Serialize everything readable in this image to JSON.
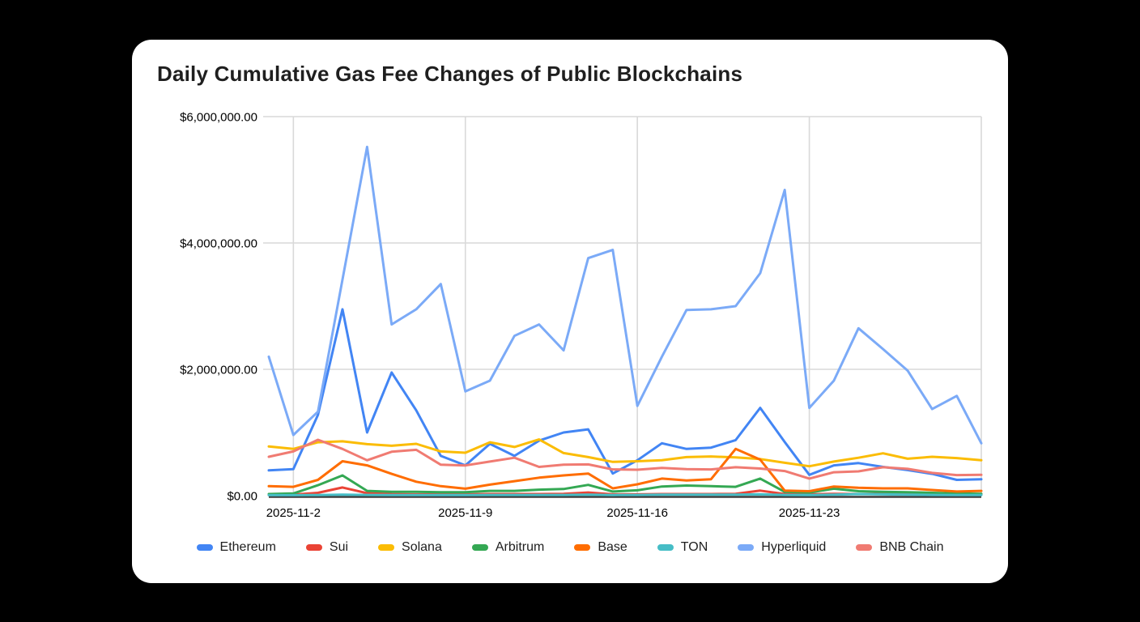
{
  "card": {
    "title": "Daily Cumulative Gas Fee Changes of Public Blockchains"
  },
  "colors": {
    "page_bg": "#000000",
    "card_bg": "#ffffff",
    "gridline": "#d9d9d9",
    "axis_line": "#3b3b3b",
    "tick_label": "#000000",
    "title": "#1f1f1f"
  },
  "chart_data": {
    "type": "line",
    "title": "Daily Cumulative Gas Fee Changes of Public Blockchains",
    "xlabel": "",
    "ylabel": "",
    "ylim": [
      0,
      6000000
    ],
    "grid": true,
    "legend_position": "bottom",
    "x": [
      "2025-11-1",
      "2025-11-2",
      "2025-11-3",
      "2025-11-4",
      "2025-11-5",
      "2025-11-6",
      "2025-11-7",
      "2025-11-8",
      "2025-11-9",
      "2025-11-10",
      "2025-11-11",
      "2025-11-12",
      "2025-11-13",
      "2025-11-14",
      "2025-11-15",
      "2025-11-16",
      "2025-11-17",
      "2025-11-18",
      "2025-11-19",
      "2025-11-20",
      "2025-11-21",
      "2025-11-22",
      "2025-11-23",
      "2025-11-24",
      "2025-11-25",
      "2025-11-26",
      "2025-11-27",
      "2025-11-28",
      "2025-11-29",
      "2025-11-30"
    ],
    "x_tick_labels": [
      {
        "index": 1,
        "label": "2025-11-2"
      },
      {
        "index": 8,
        "label": "2025-11-9"
      },
      {
        "index": 15,
        "label": "2025-11-16"
      },
      {
        "index": 22,
        "label": "2025-11-23"
      }
    ],
    "grid_day_indices": [
      1,
      8,
      15,
      22,
      29
    ],
    "y_ticks": [
      {
        "value": 0,
        "label": "$0.00"
      },
      {
        "value": 2000000,
        "label": "$2,000,000.00"
      },
      {
        "value": 4000000,
        "label": "$4,000,000.00"
      },
      {
        "value": 6000000,
        "label": "$6,000,000.00"
      }
    ],
    "series": [
      {
        "name": "Ethereum",
        "color": "#4285F4",
        "values": [
          400000,
          420000,
          1280000,
          2950000,
          1000000,
          1950000,
          1350000,
          630000,
          480000,
          820000,
          630000,
          870000,
          1000000,
          1050000,
          350000,
          560000,
          830000,
          740000,
          760000,
          880000,
          1390000,
          850000,
          330000,
          480000,
          515000,
          455000,
          405000,
          345000,
          250000,
          260000
        ]
      },
      {
        "name": "Sui",
        "color": "#EA4335",
        "values": [
          10000,
          15000,
          45000,
          130000,
          40000,
          25000,
          20000,
          20000,
          20000,
          25000,
          25000,
          25000,
          30000,
          50000,
          20000,
          20000,
          25000,
          25000,
          25000,
          30000,
          80000,
          25000,
          20000,
          30000,
          25000,
          25000,
          25000,
          25000,
          25000,
          25000
        ]
      },
      {
        "name": "Solana",
        "color": "#FBBC04",
        "values": [
          780000,
          740000,
          845000,
          860000,
          815000,
          790000,
          820000,
          700000,
          680000,
          845000,
          770000,
          890000,
          675000,
          610000,
          535000,
          545000,
          560000,
          610000,
          620000,
          605000,
          580000,
          520000,
          465000,
          540000,
          600000,
          670000,
          585000,
          615000,
          595000,
          560000
        ]
      },
      {
        "name": "Arbitrum",
        "color": "#34A853",
        "values": [
          25000,
          35000,
          165000,
          320000,
          75000,
          60000,
          60000,
          55000,
          55000,
          75000,
          75000,
          95000,
          105000,
          170000,
          65000,
          85000,
          145000,
          160000,
          150000,
          140000,
          270000,
          60000,
          50000,
          110000,
          70000,
          60000,
          55000,
          45000,
          35000,
          30000
        ]
      },
      {
        "name": "Base",
        "color": "#FF6D01",
        "values": [
          150000,
          140000,
          250000,
          545000,
          480000,
          345000,
          220000,
          150000,
          110000,
          175000,
          230000,
          285000,
          320000,
          350000,
          115000,
          180000,
          270000,
          240000,
          260000,
          740000,
          570000,
          80000,
          70000,
          145000,
          125000,
          115000,
          115000,
          90000,
          65000,
          75000
        ]
      },
      {
        "name": "TON",
        "color": "#46BDC6",
        "values": [
          8000,
          8000,
          10000,
          15000,
          12000,
          10000,
          10000,
          10000,
          10000,
          12000,
          12000,
          12000,
          12000,
          15000,
          10000,
          12000,
          15000,
          15000,
          15000,
          15000,
          20000,
          12000,
          10000,
          15000,
          25000,
          20000,
          15000,
          12000,
          10000,
          10000
        ]
      },
      {
        "name": "Hyperliquid",
        "color": "#7BAAF7",
        "values": [
          2200000,
          960000,
          1330000,
          3420000,
          5520000,
          2710000,
          2950000,
          3350000,
          1650000,
          1820000,
          2530000,
          2710000,
          2300000,
          3760000,
          3890000,
          1420000,
          2200000,
          2940000,
          2950000,
          3000000,
          3520000,
          4840000,
          1390000,
          1820000,
          2650000,
          2320000,
          1980000,
          1370000,
          1580000,
          830000
        ]
      },
      {
        "name": "BNB Chain",
        "color": "#F07B72",
        "values": [
          615000,
          700000,
          885000,
          740000,
          560000,
          695000,
          725000,
          490000,
          478000,
          540000,
          600000,
          455000,
          490000,
          495000,
          415000,
          410000,
          440000,
          420000,
          415000,
          450000,
          430000,
          390000,
          270000,
          370000,
          385000,
          450000,
          425000,
          360000,
          325000,
          330000
        ]
      }
    ]
  }
}
